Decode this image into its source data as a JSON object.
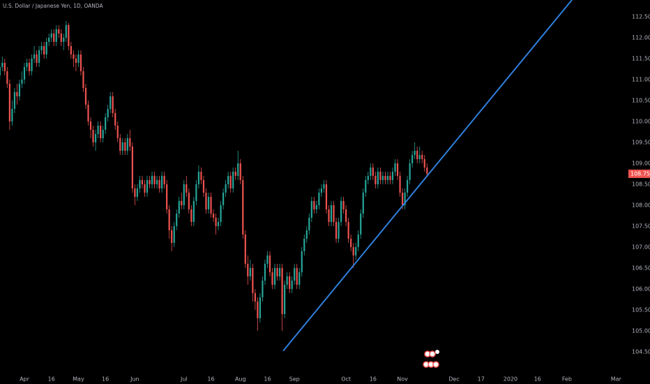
{
  "chart_data": {
    "type": "candlestick",
    "title": "U.S. Dollar / Japanese Yen, 1D, OANDA",
    "up_color": "#26a69a",
    "down_color": "#ef5350",
    "grid": false,
    "x": [
      -10,
      -9,
      -8,
      -7,
      -6,
      -5,
      -4,
      -3,
      -2,
      -1,
      0,
      1,
      2,
      3,
      4,
      5,
      6,
      7,
      8,
      9,
      10,
      11,
      12,
      13,
      14,
      15,
      16,
      17,
      18,
      19,
      20,
      21,
      22,
      23,
      24,
      25,
      26,
      27,
      28,
      29,
      30,
      31,
      32,
      33,
      34,
      35,
      36,
      37,
      38,
      39,
      40,
      41,
      42,
      43,
      44,
      45,
      46,
      47,
      48,
      49,
      50,
      51,
      52,
      53,
      54,
      55,
      56,
      57,
      58,
      59,
      60,
      61,
      62,
      63,
      64,
      65,
      66,
      67,
      68,
      69,
      70,
      71,
      72,
      73,
      74,
      75,
      76,
      77,
      78,
      79,
      80,
      81,
      82,
      83,
      84,
      85,
      86,
      87,
      88,
      89,
      90,
      91,
      92,
      93,
      94,
      95,
      96,
      97,
      98,
      99,
      100,
      101,
      102,
      103,
      104,
      105,
      106,
      107,
      108,
      109,
      110,
      111,
      112,
      113,
      114,
      115,
      116,
      117,
      118,
      119,
      120,
      121,
      122,
      123,
      124,
      125,
      126,
      127,
      128,
      129,
      130,
      131,
      132,
      133,
      134,
      135,
      136,
      137,
      138,
      139,
      140,
      141,
      142,
      143,
      144,
      145,
      146,
      147,
      148,
      149,
      150,
      151,
      152,
      153,
      154,
      155,
      156,
      157,
      158,
      159,
      160,
      161,
      162,
      163,
      164
    ],
    "open": [
      111.1,
      111.3,
      111.4,
      111.2,
      110.9,
      110.0,
      110.3,
      110.7,
      110.6,
      110.9,
      111.0,
      111.3,
      111.4,
      111.2,
      111.5,
      111.6,
      111.4,
      111.7,
      111.8,
      111.6,
      111.9,
      112.0,
      112.1,
      111.9,
      112.2,
      112.1,
      111.9,
      112.0,
      112.3,
      111.8,
      111.6,
      111.5,
      111.4,
      111.6,
      111.2,
      110.8,
      110.4,
      110.0,
      109.8,
      109.5,
      109.7,
      109.9,
      109.6,
      109.8,
      110.1,
      110.3,
      110.6,
      110.2,
      109.9,
      109.6,
      109.3,
      109.5,
      109.3,
      109.6,
      109.4,
      108.4,
      108.2,
      108.4,
      108.6,
      108.5,
      108.3,
      108.6,
      108.5,
      108.7,
      108.5,
      108.6,
      108.4,
      108.7,
      108.5,
      107.9,
      107.4,
      107.1,
      107.5,
      107.8,
      108.1,
      108.0,
      108.5,
      108.3,
      107.9,
      107.6,
      108.1,
      108.5,
      108.8,
      108.6,
      108.3,
      107.9,
      108.2,
      107.8,
      107.7,
      107.5,
      107.6,
      108.0,
      108.3,
      108.5,
      108.7,
      108.4,
      108.8,
      108.7,
      109.0,
      108.6,
      107.3,
      106.6,
      106.3,
      106.5,
      105.9,
      105.7,
      105.3,
      105.8,
      106.2,
      106.6,
      106.8,
      106.4,
      106.1,
      106.5,
      106.3,
      106.5,
      105.4,
      106.1,
      106.3,
      106.0,
      106.2,
      106.5,
      106.1,
      106.4,
      106.9,
      107.2,
      107.4,
      107.7,
      108.1,
      107.9,
      108.0,
      108.3,
      108.4,
      108.5,
      107.9,
      107.6,
      108.0,
      107.6,
      107.2,
      107.6,
      108.1,
      107.9,
      107.6,
      107.2,
      107.0,
      106.8,
      107.0,
      107.3,
      107.8,
      108.3,
      108.6,
      108.7,
      108.9,
      108.7,
      108.5,
      108.8,
      108.6,
      108.7,
      108.6,
      108.7,
      108.6,
      108.8,
      109.0,
      108.7,
      108.3,
      108.0,
      108.3,
      108.6,
      109.0,
      109.2,
      109.3,
      109.1,
      109.2,
      109.1,
      108.9
    ],
    "high": [
      111.45,
      111.55,
      111.5,
      111.3,
      111.0,
      110.5,
      110.8,
      110.9,
      111.0,
      111.2,
      111.4,
      111.5,
      111.5,
      111.6,
      111.8,
      111.7,
      111.8,
      111.9,
      111.9,
      112.0,
      112.1,
      112.2,
      112.2,
      112.3,
      112.3,
      112.2,
      112.1,
      112.4,
      112.35,
      111.9,
      111.7,
      111.6,
      111.7,
      111.7,
      111.3,
      110.9,
      110.5,
      110.1,
      109.9,
      109.8,
      110.0,
      110.0,
      109.9,
      110.2,
      110.4,
      110.7,
      110.7,
      110.3,
      110.0,
      109.7,
      109.6,
      109.6,
      109.7,
      109.8,
      109.5,
      108.5,
      108.5,
      108.7,
      108.7,
      108.6,
      108.7,
      108.7,
      108.8,
      108.8,
      108.7,
      108.7,
      108.8,
      108.8,
      108.6,
      108.0,
      107.5,
      107.6,
      107.9,
      108.2,
      108.3,
      108.6,
      108.7,
      108.4,
      108.0,
      108.2,
      108.6,
      108.95,
      108.9,
      108.7,
      108.4,
      108.3,
      108.3,
      107.9,
      107.8,
      107.7,
      108.1,
      108.4,
      108.6,
      108.8,
      108.8,
      108.9,
      108.9,
      109.3,
      109.1,
      108.7,
      107.4,
      106.8,
      106.7,
      106.6,
      106.0,
      105.8,
      105.9,
      106.3,
      106.7,
      106.9,
      106.9,
      106.5,
      106.6,
      106.6,
      106.6,
      106.6,
      106.2,
      106.4,
      106.4,
      106.3,
      106.6,
      106.6,
      106.5,
      107.0,
      107.3,
      107.5,
      107.8,
      108.2,
      108.2,
      108.1,
      108.4,
      108.5,
      108.6,
      108.6,
      108.0,
      108.1,
      108.1,
      107.7,
      107.7,
      108.2,
      108.2,
      108.0,
      107.7,
      107.3,
      107.1,
      107.1,
      107.4,
      107.9,
      108.4,
      108.7,
      108.8,
      109.0,
      109.0,
      108.8,
      108.9,
      108.9,
      108.8,
      108.8,
      108.8,
      108.8,
      108.9,
      109.1,
      109.1,
      108.8,
      108.4,
      108.4,
      108.7,
      109.1,
      109.3,
      109.5,
      109.4,
      109.4,
      109.3,
      109.2,
      109.0
    ],
    "low": [
      111.0,
      111.2,
      111.1,
      110.8,
      109.8,
      109.9,
      110.2,
      110.4,
      110.5,
      110.8,
      110.9,
      111.2,
      111.1,
      111.1,
      111.4,
      111.3,
      111.3,
      111.6,
      111.5,
      111.5,
      111.8,
      111.9,
      111.8,
      111.8,
      112.0,
      111.8,
      111.7,
      111.9,
      111.7,
      111.5,
      111.3,
      111.2,
      111.3,
      111.1,
      110.7,
      110.3,
      109.9,
      109.6,
      109.4,
      109.3,
      109.6,
      109.5,
      109.5,
      109.7,
      110.0,
      110.2,
      110.1,
      109.8,
      109.5,
      109.2,
      109.2,
      109.2,
      109.2,
      109.3,
      108.3,
      108.0,
      108.1,
      108.3,
      108.4,
      108.2,
      108.2,
      108.4,
      108.4,
      108.4,
      108.4,
      108.3,
      108.3,
      108.4,
      107.8,
      107.2,
      106.9,
      107.0,
      107.4,
      107.7,
      107.9,
      107.9,
      108.2,
      107.8,
      107.5,
      107.5,
      108.0,
      108.4,
      108.5,
      108.2,
      107.8,
      107.8,
      107.7,
      107.6,
      107.3,
      107.4,
      107.5,
      107.9,
      108.2,
      108.4,
      108.3,
      108.3,
      108.6,
      108.6,
      108.5,
      107.2,
      106.5,
      106.1,
      106.2,
      105.7,
      105.5,
      105.0,
      105.2,
      105.7,
      106.1,
      106.5,
      106.3,
      106.0,
      106.0,
      106.2,
      106.2,
      105.0,
      105.3,
      106.0,
      105.9,
      105.9,
      106.1,
      106.0,
      106.0,
      106.3,
      106.8,
      107.1,
      107.3,
      107.6,
      107.8,
      107.8,
      107.9,
      108.2,
      108.3,
      107.8,
      107.5,
      107.5,
      107.5,
      107.1,
      107.1,
      107.5,
      107.8,
      107.5,
      107.1,
      106.9,
      106.5,
      106.7,
      106.9,
      107.2,
      107.7,
      108.2,
      108.5,
      108.6,
      108.6,
      108.4,
      108.4,
      108.5,
      108.5,
      108.5,
      108.5,
      108.5,
      108.5,
      108.7,
      108.6,
      108.2,
      107.9,
      107.9,
      108.2,
      108.5,
      108.9,
      109.1,
      109.0,
      109.0,
      109.0,
      108.8,
      108.7
    ],
    "close": [
      111.3,
      111.4,
      111.2,
      110.9,
      110.0,
      110.3,
      110.7,
      110.6,
      110.9,
      111.0,
      111.3,
      111.4,
      111.2,
      111.5,
      111.6,
      111.4,
      111.7,
      111.8,
      111.6,
      111.9,
      112.0,
      112.1,
      111.9,
      112.2,
      112.1,
      111.9,
      112.0,
      112.3,
      111.8,
      111.6,
      111.5,
      111.4,
      111.6,
      111.2,
      110.8,
      110.4,
      110.0,
      109.8,
      109.5,
      109.7,
      109.9,
      109.6,
      109.8,
      110.1,
      110.3,
      110.6,
      110.2,
      109.9,
      109.6,
      109.3,
      109.5,
      109.3,
      109.6,
      109.4,
      108.4,
      108.2,
      108.4,
      108.6,
      108.5,
      108.3,
      108.6,
      108.5,
      108.7,
      108.5,
      108.6,
      108.4,
      108.7,
      108.5,
      107.9,
      107.4,
      107.1,
      107.5,
      107.8,
      108.1,
      108.0,
      108.5,
      108.3,
      107.9,
      107.6,
      108.1,
      108.5,
      108.8,
      108.6,
      108.3,
      107.9,
      108.2,
      107.8,
      107.7,
      107.5,
      107.6,
      108.0,
      108.3,
      108.5,
      108.7,
      108.4,
      108.8,
      108.7,
      109.0,
      108.6,
      107.3,
      106.6,
      106.3,
      106.5,
      105.9,
      105.7,
      105.3,
      105.8,
      106.2,
      106.6,
      106.8,
      106.4,
      106.1,
      106.5,
      106.3,
      106.5,
      105.4,
      106.1,
      106.3,
      106.0,
      106.2,
      106.5,
      106.1,
      106.4,
      106.9,
      107.2,
      107.4,
      107.7,
      108.1,
      107.9,
      108.0,
      108.3,
      108.4,
      108.5,
      107.9,
      107.6,
      108.0,
      107.6,
      107.2,
      107.6,
      108.1,
      107.9,
      107.6,
      107.2,
      107.0,
      106.8,
      107.0,
      107.3,
      107.8,
      108.3,
      108.6,
      108.7,
      108.9,
      108.7,
      108.5,
      108.8,
      108.6,
      108.7,
      108.6,
      108.7,
      108.6,
      108.8,
      109.0,
      108.7,
      108.3,
      108.0,
      108.3,
      108.6,
      109.0,
      109.2,
      109.3,
      109.1,
      109.2,
      109.1,
      108.9,
      108.75
    ],
    "xlim": [
      -9.94,
      245.74
    ],
    "ylim": [
      103.73,
      112.9
    ],
    "xticks": [
      {
        "value": 0,
        "label": "Apr"
      },
      {
        "value": 11,
        "label": "16"
      },
      {
        "value": 22,
        "label": "May"
      },
      {
        "value": 33,
        "label": "16"
      },
      {
        "value": 45,
        "label": "Jun"
      },
      {
        "value": 65,
        "label": "Jul"
      },
      {
        "value": 76,
        "label": "16"
      },
      {
        "value": 88,
        "label": "Aug"
      },
      {
        "value": 99,
        "label": "16"
      },
      {
        "value": 110,
        "label": "Sep"
      },
      {
        "value": 131,
        "label": "Oct"
      },
      {
        "value": 142,
        "label": "16"
      },
      {
        "value": 154,
        "label": "Nov"
      },
      {
        "value": 175,
        "label": "Dec"
      },
      {
        "value": 186,
        "label": "17"
      },
      {
        "value": 198,
        "label": "2020"
      },
      {
        "value": 209,
        "label": "16"
      },
      {
        "value": 221,
        "label": "Feb"
      },
      {
        "value": 241,
        "label": "Mar"
      }
    ],
    "yticks": [
      {
        "value": 104.5,
        "label": "104.500"
      },
      {
        "value": 105,
        "label": "105.000"
      },
      {
        "value": 105.5,
        "label": "105.500"
      },
      {
        "value": 106,
        "label": "106.000"
      },
      {
        "value": 106.5,
        "label": "106.500"
      },
      {
        "value": 107,
        "label": "107.000"
      },
      {
        "value": 107.5,
        "label": "107.500"
      },
      {
        "value": 108,
        "label": "108.000"
      },
      {
        "value": 108.5,
        "label": "108.500"
      },
      {
        "value": 109,
        "label": "109.000"
      },
      {
        "value": 109.5,
        "label": "109.500"
      },
      {
        "value": 110,
        "label": "110.000"
      },
      {
        "value": 110.5,
        "label": "110.500"
      },
      {
        "value": 111,
        "label": "111.000"
      },
      {
        "value": 111.5,
        "label": "111.500"
      },
      {
        "value": 112,
        "label": "112.000"
      },
      {
        "value": 112.5,
        "label": "112.500"
      }
    ],
    "last_price": {
      "value": 108.75,
      "label": "108.750",
      "color": "#ef5350"
    },
    "trend_line": {
      "x": [
        105.4,
        223.0
      ],
      "y": [
        104.52,
        112.9
      ],
      "color": "#2f7fdc"
    }
  }
}
